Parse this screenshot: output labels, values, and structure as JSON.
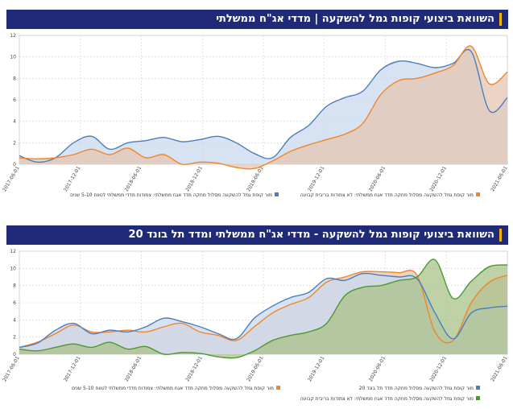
{
  "charts": [
    {
      "title": "השוואת ביצועי קופות גמל להשקעה | מדדי אג\"ח ממשלתי",
      "title_suffix": ""
    },
    {
      "title": "השוואת ביצועי קופות גמל להשקעה - מדדי אג\"ח ממשלתי ומדד תל בונד 20",
      "title_suffix": ""
    }
  ],
  "chart_data": [
    {
      "type": "area",
      "title": "השוואת ביצועי קופות גמל להשקעה | מדדי אג\"ח ממשלתי",
      "ylim": [
        0,
        12
      ],
      "yticks": [
        0,
        2,
        4,
        6,
        8,
        10,
        12
      ],
      "x_tick_labels": [
        "2017-06-01",
        "2017-12-01",
        "2018-06-01",
        "2018-12-01",
        "2019-06-01",
        "2019-12-01",
        "2020-06-01",
        "2020-12-01",
        "2021-06-01"
      ],
      "grid": true,
      "legend_position": "bottom",
      "series": [
        {
          "name": "מור קופת גמל להשקעה מסלול מחקה מדד אגח ממשלתי: צמודות מדדי ממשלתי לטווח 5-10 שנים",
          "color": "#4a7fbf",
          "fill": "#c9d9ef",
          "values": [
            0.8,
            0.2,
            0.6,
            2.0,
            2.6,
            1.4,
            2.0,
            2.2,
            2.5,
            2.1,
            2.3,
            2.6,
            2.0,
            1.0,
            0.6,
            2.5,
            3.6,
            5.4,
            6.2,
            6.8,
            8.8,
            9.6,
            9.4,
            9.0,
            9.4,
            10.5,
            5.0,
            6.2
          ]
        },
        {
          "name": "מור קופת גמל להשקעה מסלול מחקה מדד אגח ממשלתי: לא צמודות בריבית קבועה",
          "color": "#f0862a",
          "fill": "#e6c5b2",
          "values": [
            0.6,
            0.5,
            0.6,
            0.9,
            1.4,
            0.9,
            1.5,
            0.6,
            0.9,
            0.0,
            0.2,
            0.1,
            -0.3,
            -0.4,
            0.3,
            1.2,
            1.8,
            2.3,
            2.8,
            3.8,
            6.5,
            7.8,
            8.0,
            8.5,
            9.2,
            11.0,
            7.5,
            8.6
          ]
        }
      ]
    },
    {
      "type": "area",
      "title": "השוואת ביצועי קופות גמל להשקעה - מדדי אג\"ח ממשלתי ומדד תל בונד 20",
      "ylim": [
        0,
        12
      ],
      "yticks": [
        0,
        2,
        4,
        6,
        8,
        10,
        12
      ],
      "x_tick_labels": [
        "2017-06-01",
        "2017-12-01",
        "2018-06-01",
        "2018-12-01",
        "2019-06-01",
        "2019-12-01",
        "2020-06-01",
        "2020-12-01",
        "2021-06-01"
      ],
      "grid": true,
      "legend_position": "bottom",
      "series": [
        {
          "name": "מור קופת גמל להשקעה מסלול מחקה מדד אגח ממשלתי: צמודות מדדי ממשלתי לטווח 5-10 שנים",
          "color": "#f0862a",
          "fill": "#e6c5b2",
          "values": [
            0.8,
            1.4,
            2.4,
            3.4,
            2.6,
            2.6,
            2.8,
            2.6,
            3.2,
            3.6,
            2.6,
            2.2,
            1.6,
            3.2,
            4.8,
            5.8,
            6.6,
            8.4,
            9.0,
            9.6,
            9.6,
            9.5,
            9.2,
            2.6,
            1.6,
            6.0,
            8.4,
            9.2
          ]
        },
        {
          "name": "מור קופת גמל להשקעה מסלול מחקה מדד תל בונד 20",
          "color": "#4a7fbf",
          "fill": "#c9d9ef",
          "values": [
            0.8,
            1.3,
            2.8,
            3.6,
            2.4,
            2.8,
            2.6,
            3.2,
            4.2,
            3.8,
            3.2,
            2.4,
            1.8,
            4.2,
            5.6,
            6.6,
            7.2,
            8.8,
            8.6,
            9.4,
            9.2,
            9.0,
            8.8,
            4.8,
            1.8,
            4.8,
            5.4,
            5.6
          ]
        },
        {
          "name": "מור קופת גמל להשקעה מסלול מחקה מדד אגח ממשלתי: לא צמודות בריבית קבועה",
          "color": "#4a9a2e",
          "fill": "#a9c28a",
          "values": [
            0.6,
            0.4,
            0.8,
            1.2,
            0.8,
            1.4,
            0.6,
            0.9,
            0.0,
            0.2,
            0.1,
            -0.3,
            -0.4,
            0.4,
            1.6,
            2.2,
            2.6,
            3.6,
            6.8,
            7.8,
            8.0,
            8.6,
            9.0,
            11.0,
            6.5,
            8.5,
            10.2,
            10.4
          ]
        }
      ]
    }
  ]
}
